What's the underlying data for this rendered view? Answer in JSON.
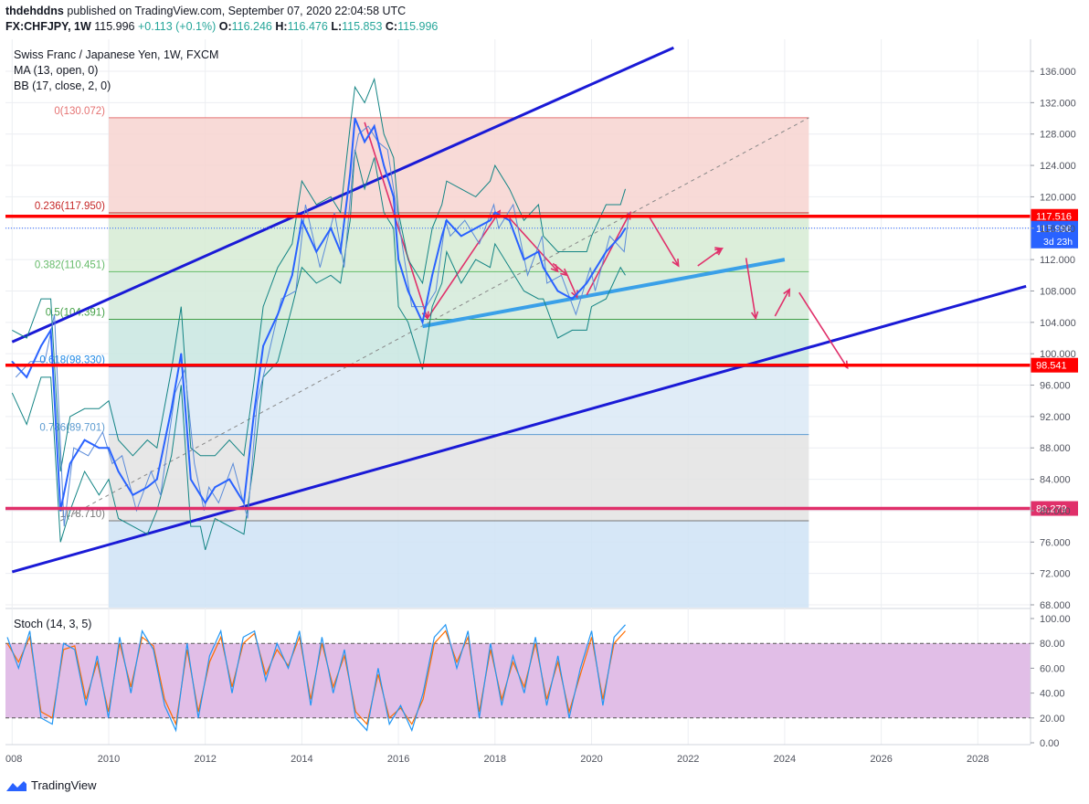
{
  "header": {
    "author": "thdehddns",
    "published_text": "published on TradingView.com, September 07, 2020 22:04:58 UTC",
    "symbol": "FX:CHFJPY, 1W",
    "price": "115.996",
    "change": "+0.113 (+0.1%)",
    "o_label": "O:",
    "o_value": "116.246",
    "h_label": "H:",
    "h_value": "116.476",
    "l_label": "L:",
    "l_value": "115.853",
    "c_label": "C:",
    "c_value": "115.996"
  },
  "legend": {
    "title": "Swiss Franc / Japanese Yen, 1W, FXCM",
    "ma": "MA (13, open, 0)",
    "bb": "BB (17, close, 2, 0)",
    "stoch": "Stoch (14, 3, 5)"
  },
  "footer": {
    "brand": "TradingView"
  },
  "colors": {
    "price_line": "#2962ff",
    "bb_line": "#138484",
    "trend_channel": "#1a1ad6",
    "support_line": "#3aa0e8",
    "horizontal_red": "#ff0000",
    "horizontal_pink": "#e0306a",
    "arrows": "#e0306a",
    "stoch_k": "#2196f3",
    "stoch_d": "#ff6d00",
    "stoch_band": "#e1bee7"
  },
  "chart_data": [
    {
      "type": "line",
      "title": "Swiss Franc / Japanese Yen, 1W, FXCM",
      "ylim": [
        68,
        138
      ],
      "xlim": [
        2008,
        2029
      ],
      "x_ticks": [
        "008",
        "2010",
        "2012",
        "2014",
        "2016",
        "2018",
        "2020",
        "2022",
        "2024",
        "2026",
        "2028"
      ],
      "y_ticks": [
        "136.000",
        "132.000",
        "128.000",
        "124.000",
        "120.000",
        "116.000",
        "112.000",
        "108.000",
        "104.000",
        "100.000",
        "96.000",
        "92.000",
        "88.000",
        "84.000",
        "80.000",
        "76.000",
        "72.000",
        "68.000"
      ],
      "series": [
        {
          "x": [
            2008.0,
            2008.3,
            2008.6,
            2008.8,
            2009.0,
            2009.2,
            2009.5,
            2009.8,
            2010.0,
            2010.2,
            2010.5,
            2010.8,
            2011.0,
            2011.3,
            2011.5,
            2011.7,
            2011.9,
            2012.0,
            2012.2,
            2012.5,
            2012.8,
            2013.0,
            2013.2,
            2013.5,
            2013.8,
            2014.0,
            2014.3,
            2014.6,
            2014.8,
            2015.0,
            2015.1,
            2015.3,
            2015.5,
            2015.7,
            2015.9,
            2016.0,
            2016.2,
            2016.5,
            2016.7,
            2016.9,
            2017.0,
            2017.3,
            2017.6,
            2017.9,
            2018.0,
            2018.3,
            2018.6,
            2018.9,
            2019.0,
            2019.3,
            2019.6,
            2019.9,
            2020.0,
            2020.3,
            2020.6,
            2020.7
          ],
          "values": [
            99,
            97,
            101,
            103,
            80,
            86,
            89,
            88,
            88,
            85,
            82,
            83,
            84,
            93,
            100,
            84,
            82,
            81,
            83,
            84,
            81,
            92,
            101,
            105,
            110,
            117,
            113,
            116,
            113,
            123,
            130,
            127,
            129,
            124,
            120,
            112,
            108,
            104,
            110,
            115,
            117,
            115,
            116,
            117,
            118,
            117,
            112,
            113,
            111,
            108,
            107,
            109,
            110,
            113,
            115,
            116
          ]
        }
      ],
      "fibonacci": {
        "levels": [
          {
            "label": "0(130.072)",
            "value": 130.072
          },
          {
            "label": "0.236(117.950)",
            "value": 117.95
          },
          {
            "label": "0.382(110.451)",
            "value": 110.451
          },
          {
            "label": "0.5(104.391)",
            "value": 104.391
          },
          {
            "label": "0.618(98.330)",
            "value": 98.33
          },
          {
            "label": "0.786(89.701)",
            "value": 89.701
          },
          {
            "label": "1(78.710)",
            "value": 78.71
          }
        ],
        "x_start": 2010.0,
        "x_end": 2024.5
      },
      "horizontal_lines": [
        {
          "value": 117.516,
          "label": "117.516",
          "color": "#ff0000"
        },
        {
          "value": 98.541,
          "label": "98.541",
          "color": "#ff0000"
        },
        {
          "value": 80.279,
          "label": "80.279",
          "color": "#e0306a"
        }
      ],
      "last_price": {
        "value": 115.996,
        "label": "115.996",
        "countdown": "3d 23h"
      }
    },
    {
      "type": "line",
      "title": "Stoch (14, 3, 5)",
      "ylim": [
        0,
        100
      ],
      "y_ticks": [
        "100.00",
        "80.00",
        "60.00",
        "40.00",
        "20.00",
        "0.00"
      ],
      "band": [
        20,
        80
      ],
      "series": [
        {
          "name": "%K",
          "values": [
            85,
            60,
            90,
            20,
            15,
            80,
            75,
            30,
            70,
            20,
            85,
            40,
            90,
            75,
            30,
            10,
            80,
            20,
            70,
            90,
            40,
            85,
            90,
            50,
            80,
            60,
            90,
            30,
            85,
            40,
            75,
            20,
            10,
            60,
            15,
            30,
            10,
            40,
            85,
            95,
            60,
            90,
            20,
            80,
            30,
            70,
            40,
            85,
            30,
            70,
            20,
            60,
            90,
            30,
            85,
            95
          ]
        },
        {
          "name": "%D",
          "values": [
            80,
            65,
            85,
            25,
            20,
            75,
            78,
            35,
            65,
            25,
            80,
            45,
            85,
            78,
            35,
            15,
            75,
            25,
            65,
            85,
            45,
            80,
            88,
            55,
            75,
            62,
            85,
            35,
            80,
            45,
            70,
            25,
            15,
            55,
            20,
            28,
            15,
            35,
            80,
            90,
            65,
            85,
            25,
            75,
            35,
            65,
            45,
            80,
            35,
            65,
            25,
            55,
            85,
            35,
            80,
            90
          ]
        }
      ]
    }
  ]
}
